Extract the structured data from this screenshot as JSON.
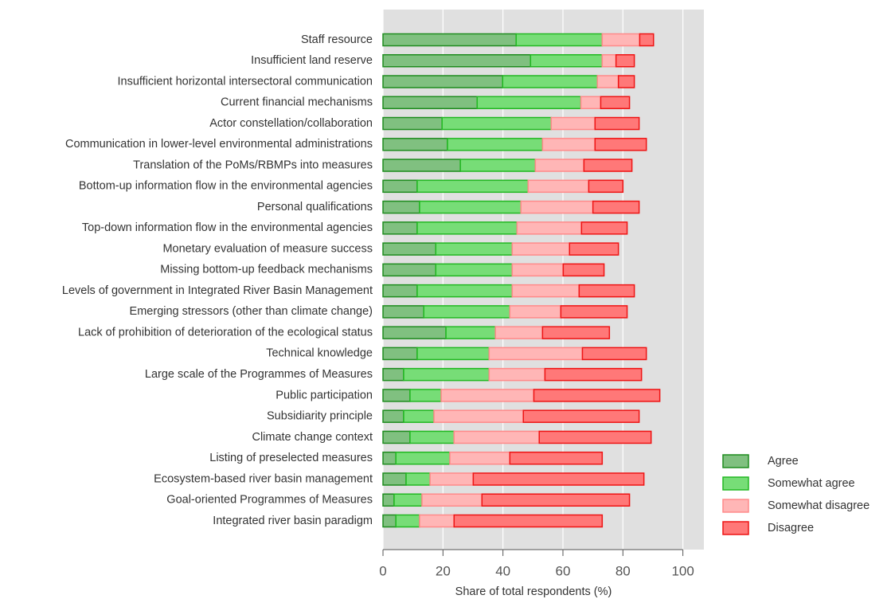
{
  "chart_data": {
    "type": "stacked_barh",
    "xlabel": "Share of total respondents (%)",
    "categories": [
      "Staff resource",
      "Insufficient land reserve",
      "Insufficient horizontal intersectoral communication",
      "Current financial mechanisms",
      "Actor constellation/collaboration",
      "Communication in lower-level environmental administrations",
      "Translation of the PoMs/RBMPs into measures",
      "Bottom-up information flow in the environmental agencies",
      "Personal qualifications",
      "Top-down information flow in the environmental agencies",
      "Monetary evaluation of measure success",
      "Missing bottom-up feedback mechanisms",
      "Levels of government in Integrated River Basin Management",
      "Emerging stressors (other than climate change)",
      "Lack of prohibition of deterioration of the ecological status",
      "Technical knowledge",
      "Large scale of the Programmes of Measures",
      "Public participation",
      "Subsidiarity principle",
      "Climate change context",
      "Listing of preselected measures",
      "Ecosystem-based river basin management",
      "Goal-oriented Programmes of Measures",
      "Integrated river basin paradigm"
    ],
    "series": [
      {
        "name": "Agree",
        "color": "#80c080",
        "edgecolor": "#1e8c1e",
        "values": [
          44.4,
          49.2,
          39.9,
          31.4,
          19.7,
          21.5,
          25.8,
          11.4,
          12.2,
          11.4,
          17.6,
          17.6,
          11.4,
          13.6,
          21,
          11.4,
          6.9,
          9,
          6.9,
          9,
          4.3,
          7.7,
          3.7,
          4.3
        ]
      },
      {
        "name": "Somewhat agree",
        "color": "#77dd77",
        "edgecolor": "#22b822",
        "values": [
          28.7,
          23.9,
          31.6,
          34.6,
          36.4,
          31.7,
          25,
          37,
          33.8,
          33.3,
          25.5,
          25.5,
          31.7,
          28.7,
          16.5,
          24,
          28.5,
          10.4,
          10.1,
          14.7,
          18,
          8,
          9.3,
          7.9
        ]
      },
      {
        "name": "Somewhat disagree",
        "color": "#ffb6b6",
        "edgecolor": "#ff8a8a",
        "values": [
          12.5,
          4.6,
          7,
          6.6,
          14.6,
          17.5,
          16.2,
          20.2,
          24,
          21.5,
          19.1,
          17,
          22.3,
          17,
          15.7,
          31.1,
          18.6,
          30.9,
          29.8,
          28.4,
          20,
          14.4,
          20,
          11.5
        ]
      },
      {
        "name": "Disagree",
        "color": "#ff7878",
        "edgecolor": "#ee1414",
        "values": [
          4.6,
          6.1,
          5.3,
          9.6,
          14.7,
          17.1,
          16,
          11.4,
          15.4,
          15.2,
          16.3,
          13.6,
          18.4,
          22.1,
          22.3,
          21.3,
          32.2,
          42,
          38.6,
          37.3,
          30.8,
          56.9,
          49.2,
          49.4
        ]
      }
    ],
    "xlim": [
      0,
      107
    ],
    "xticks": [
      0,
      20,
      40,
      60,
      80,
      100
    ],
    "grid": true,
    "legend": "lower right"
  }
}
